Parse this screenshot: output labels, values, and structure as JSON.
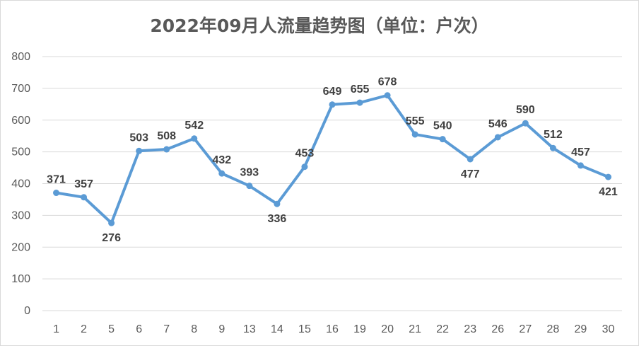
{
  "chart_data": {
    "type": "line",
    "title": "2022年09月人流量趋势图（单位：户次）",
    "xlabel": "",
    "ylabel": "",
    "categories": [
      "1",
      "2",
      "5",
      "6",
      "7",
      "8",
      "9",
      "13",
      "14",
      "15",
      "16",
      "19",
      "20",
      "21",
      "22",
      "23",
      "26",
      "27",
      "28",
      "29",
      "30"
    ],
    "series": [
      {
        "values": [
          371,
          357,
          276,
          503,
          508,
          542,
          432,
          393,
          336,
          453,
          649,
          655,
          678,
          555,
          540,
          477,
          546,
          590,
          512,
          457,
          421
        ]
      }
    ],
    "ylim": [
      0,
      800
    ],
    "yticks": [
      "0",
      "100",
      "200",
      "300",
      "400",
      "500",
      "600",
      "700",
      "800"
    ],
    "grid": true,
    "data_labels": true,
    "colors": {
      "line": "#5b9bd5",
      "grid": "#d9d9d9",
      "text": "#595959",
      "label": "#404040"
    }
  }
}
